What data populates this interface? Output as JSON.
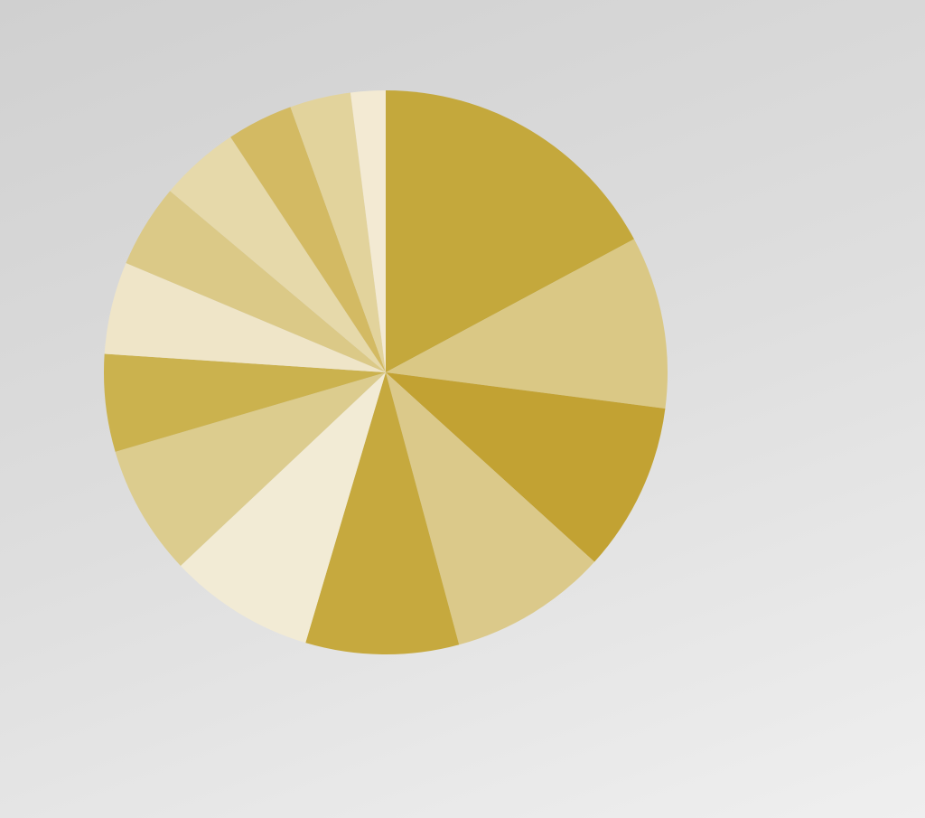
{
  "chart_data": {
    "type": "pie",
    "values": [
      17.2,
      9.9,
      9.7,
      9.1,
      8.8,
      8.4,
      7.5,
      5.6,
      5.3,
      4.8,
      4.6,
      3.8,
      3.5,
      2.0
    ],
    "colors": [
      "#c4a83c",
      "#dac885",
      "#c2a233",
      "#dbc98a",
      "#c6a93e",
      "#f2ebd5",
      "#dccc8e",
      "#cbb24e",
      "#efe5c8",
      "#dbc987",
      "#e6d9aa",
      "#d3ba63",
      "#e2d39c",
      "#f3ead3"
    ]
  }
}
